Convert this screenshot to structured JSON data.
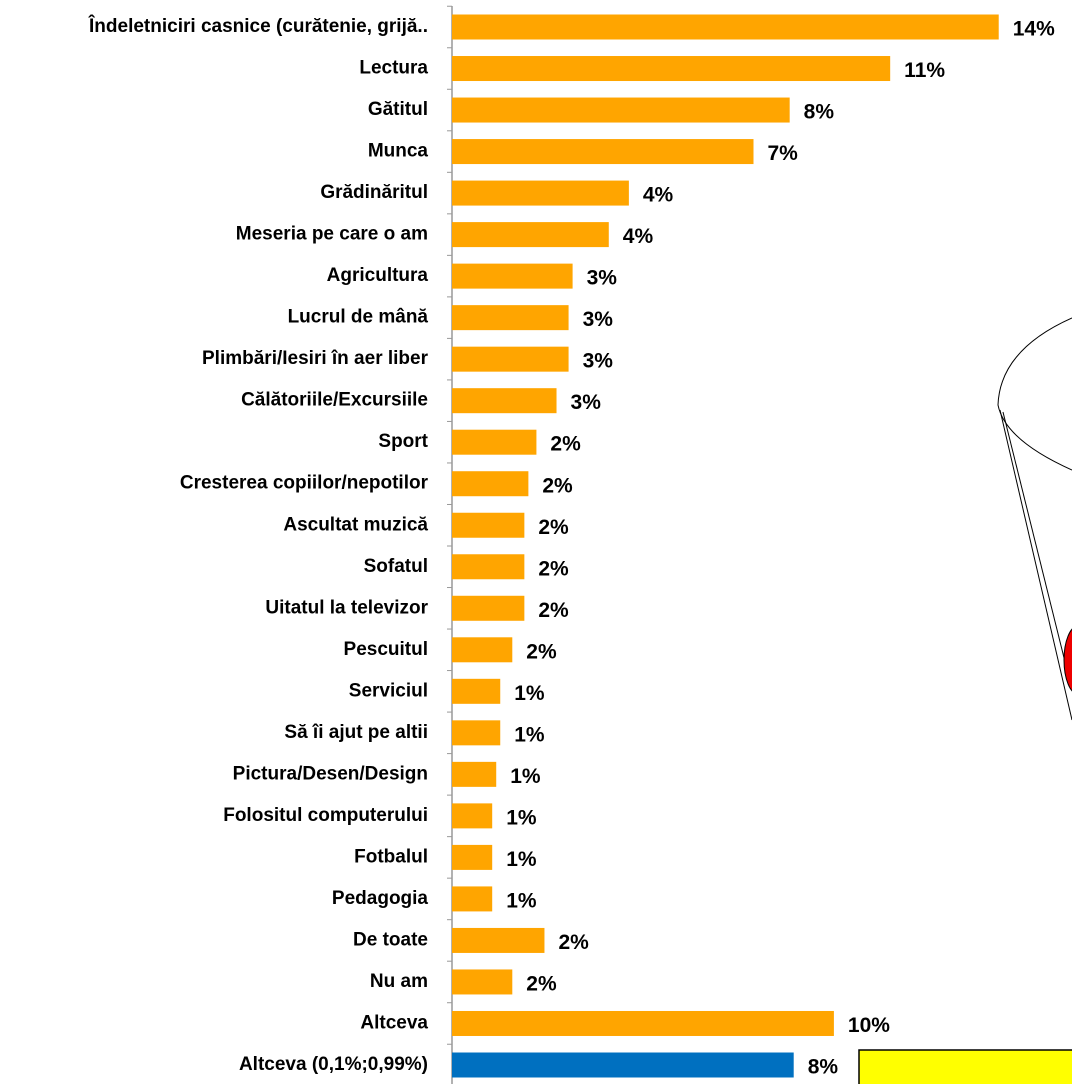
{
  "chart_data": {
    "type": "barh",
    "categories": [
      "Îndeletniciri casnice (curătenie, grijă..",
      "Lectura",
      "Gătitul",
      "Munca",
      "Grădinăritul",
      "Meseria pe care o am",
      "Agricultura",
      "Lucrul de mână",
      "Plimbări/Iesiri în aer liber",
      "Călătoriile/Excursiile",
      "Sport",
      "Cresterea copiilor/nepotilor",
      "Ascultat muzică",
      "Sofatul",
      "Uitatul la televizor",
      "Pescuitul",
      "Serviciul",
      "Să îi ajut pe altii",
      "Pictura/Desen/Design",
      "Folositul computerului",
      "Fotbalul",
      "Pedagogia",
      "De toate",
      "Nu am",
      "Altceva",
      "Altceva (0,1%;0,99%)"
    ],
    "values": [
      13.6,
      10.9,
      8.4,
      7.5,
      4.4,
      3.9,
      3.0,
      2.9,
      2.9,
      2.6,
      2.1,
      1.9,
      1.8,
      1.8,
      1.8,
      1.5,
      1.2,
      1.2,
      1.1,
      1.0,
      1.0,
      1.0,
      2.3,
      1.5,
      9.5,
      8.5
    ],
    "value_labels": [
      "14%",
      "11%",
      "8%",
      "7%",
      "4%",
      "4%",
      "3%",
      "3%",
      "3%",
      "3%",
      "2%",
      "2%",
      "2%",
      "2%",
      "2%",
      "2%",
      "1%",
      "1%",
      "1%",
      "1%",
      "1%",
      "1%",
      "2%",
      "2%",
      "10%",
      "8%"
    ],
    "colors": [
      "#ffa500",
      "#ffa500",
      "#ffa500",
      "#ffa500",
      "#ffa500",
      "#ffa500",
      "#ffa500",
      "#ffa500",
      "#ffa500",
      "#ffa500",
      "#ffa500",
      "#ffa500",
      "#ffa500",
      "#ffa500",
      "#ffa500",
      "#ffa500",
      "#ffa500",
      "#ffa500",
      "#ffa500",
      "#ffa500",
      "#ffa500",
      "#ffa500",
      "#ffa500",
      "#ffa500",
      "#ffa500",
      "#0070c0"
    ],
    "xlim": [
      0,
      15
    ]
  }
}
